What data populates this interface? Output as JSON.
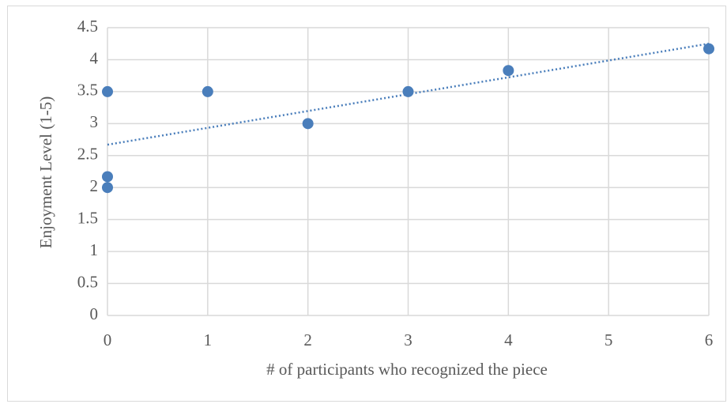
{
  "chart_data": {
    "type": "scatter",
    "x_label": "# of participants who recognized the piece",
    "y_label": "Enjoyment Level (1-5)",
    "x": [
      0,
      0,
      0,
      1,
      2,
      3,
      4,
      6
    ],
    "values": [
      3.5,
      2.17,
      2,
      3.5,
      3,
      3.5,
      3.83,
      4.17
    ],
    "color": "#4a7ebb",
    "trendline": {
      "x": [
        0,
        6
      ],
      "y": [
        2.67,
        4.25
      ],
      "color": "#4a7ebb"
    },
    "xlim": [
      0,
      6
    ],
    "xticks": [
      0,
      1,
      2,
      3,
      4,
      5,
      6
    ],
    "ylim": [
      0,
      4.5
    ],
    "yticks": [
      0,
      0.5,
      1,
      1.5,
      2,
      2.5,
      3,
      3.5,
      4,
      4.5
    ],
    "grid": true
  }
}
